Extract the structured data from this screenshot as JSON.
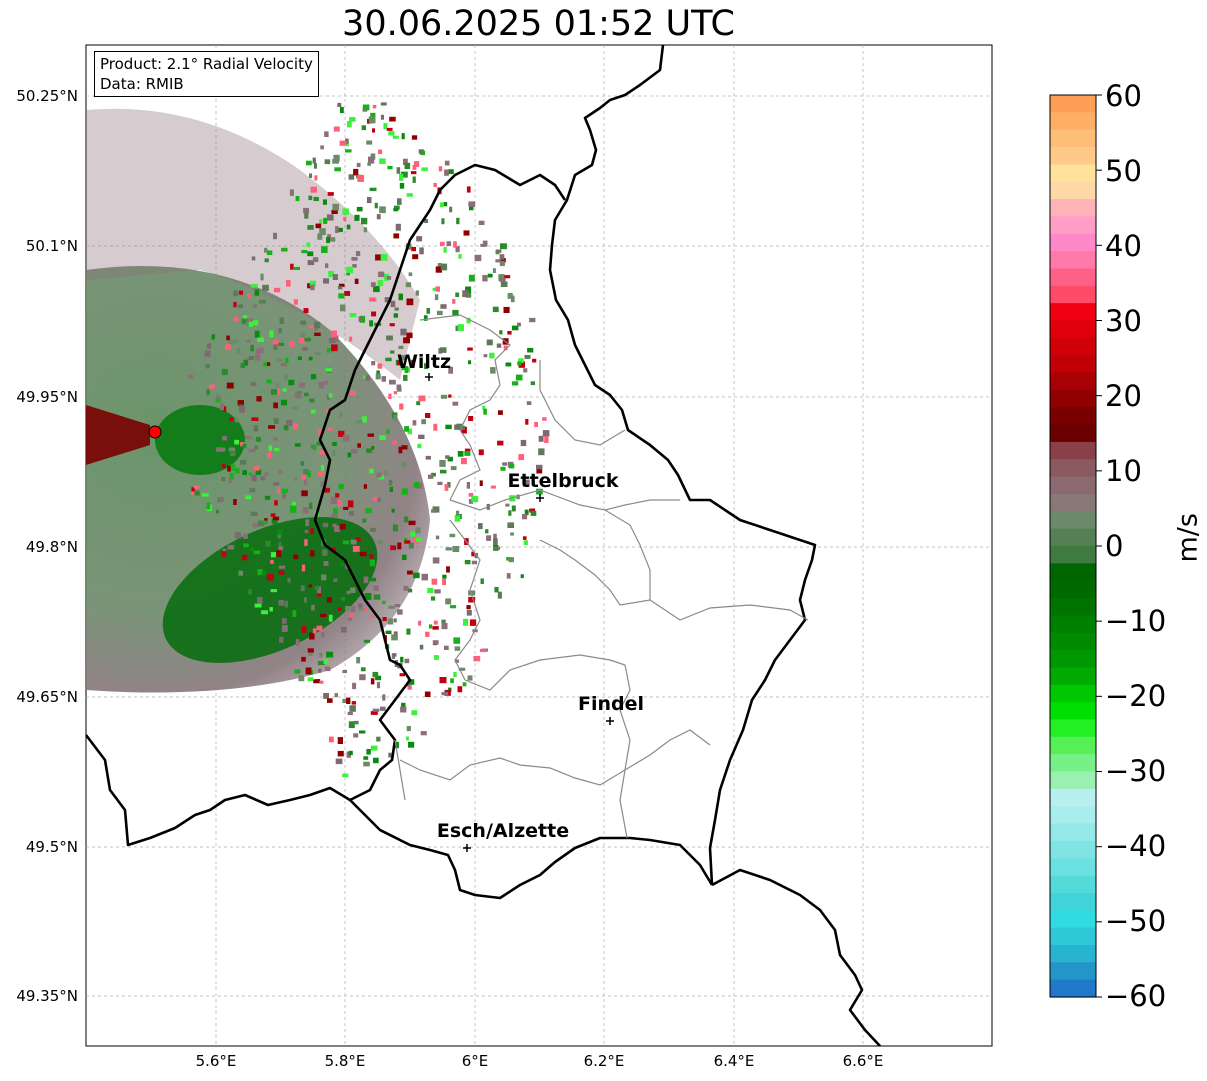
{
  "title": "30.06.2025 01:52 UTC",
  "infobox": {
    "line1": "Product: 2.1° Radial Velocity",
    "line2": "Data: RMIB"
  },
  "lat_labels": [
    "50.25°N",
    "50.1°N",
    "49.95°N",
    "49.8°N",
    "49.65°N",
    "49.5°N",
    "49.35°N"
  ],
  "lon_labels": [
    "5.6°E",
    "5.8°E",
    "6°E",
    "6.2°E",
    "6.4°E",
    "6.6°E"
  ],
  "cities": [
    {
      "name": "Wiltz"
    },
    {
      "name": "Ettelbruck"
    },
    {
      "name": "Findel"
    },
    {
      "name": "Esch/Alzette"
    }
  ],
  "colorbar": {
    "unit": "m/s",
    "ticks": [
      "60",
      "50",
      "40",
      "30",
      "20",
      "10",
      "0",
      "−10",
      "−20",
      "−30",
      "−40",
      "−50",
      "−60"
    ],
    "range": [
      -60,
      60
    ]
  },
  "colors": {
    "radar_site": "#ff0000",
    "positive_high": "#ffa050",
    "positive": "#f00010",
    "zero": "#888078",
    "negative": "#006400",
    "negative_high": "#1f78c8"
  }
}
